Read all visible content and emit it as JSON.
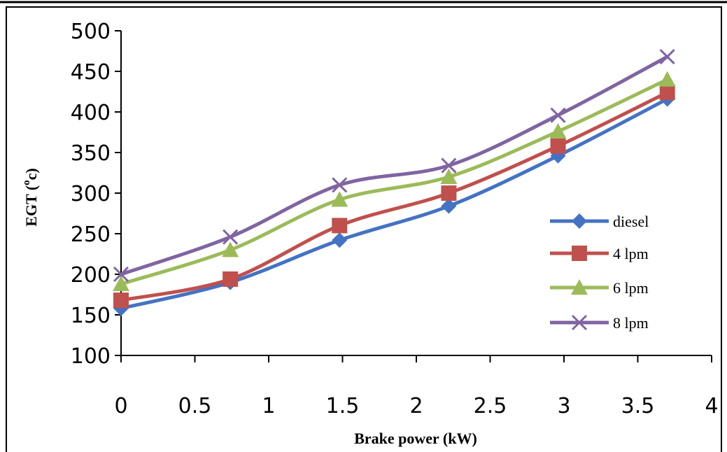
{
  "chart_data": {
    "type": "line",
    "title": "",
    "xlabel": "Brake power (kW)",
    "ylabel_main": "EGT (",
    "ylabel_sup": "o",
    "ylabel_tail": "c)",
    "xlim": [
      0,
      4
    ],
    "ylim": [
      100,
      500
    ],
    "xticks": [
      "0",
      "0.5",
      "1",
      "1.5",
      "2",
      "2.5",
      "3",
      "3.5",
      "4"
    ],
    "yticks": [
      "100",
      "150",
      "200",
      "250",
      "300",
      "350",
      "400",
      "450",
      "500"
    ],
    "grid": false,
    "legend_position": "right",
    "x": [
      0,
      0.74,
      1.48,
      2.22,
      2.96,
      3.7
    ],
    "series": [
      {
        "name": "diesel",
        "color": "#4472C4",
        "marker": "diamond",
        "values": [
          158,
          190,
          242,
          284,
          346,
          416
        ]
      },
      {
        "name": "4 lpm",
        "color": "#C0504D",
        "marker": "square",
        "values": [
          168,
          194,
          260,
          300,
          358,
          424
        ]
      },
      {
        "name": "6 lpm",
        "color": "#9BBB59",
        "marker": "triangle",
        "values": [
          188,
          230,
          292,
          320,
          376,
          440
        ]
      },
      {
        "name": "8 lpm",
        "color": "#8064A2",
        "marker": "cross",
        "values": [
          200,
          246,
          310,
          334,
          396,
          468
        ]
      }
    ]
  }
}
